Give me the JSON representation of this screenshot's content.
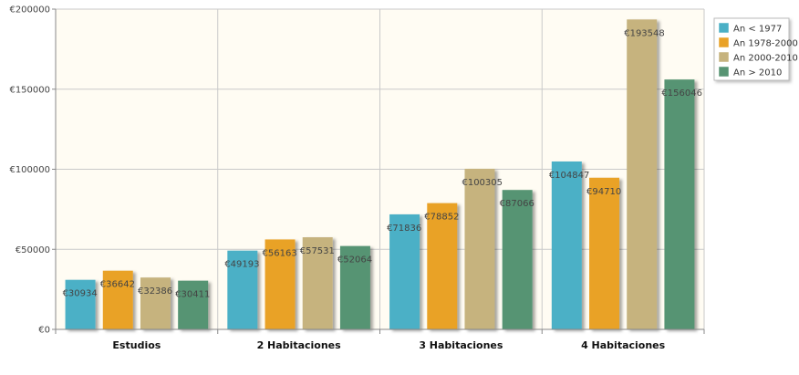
{
  "chart_data": {
    "type": "bar",
    "categories": [
      "Estudios",
      "2 Habitaciones",
      "3 Habitaciones",
      "4 Habitaciones"
    ],
    "series": [
      {
        "name": "An < 1977",
        "values": [
          30934,
          49193,
          71836,
          104847
        ],
        "labels": [
          "€30934",
          "€49193",
          "€71836",
          "€104847"
        ],
        "color": "#4bb0c6"
      },
      {
        "name": "An 1978-2000",
        "values": [
          36642,
          56163,
          78852,
          94710
        ],
        "labels": [
          "€36642",
          "€56163",
          "€78852",
          "€94710"
        ],
        "color": "#e9a228"
      },
      {
        "name": "An 2000-2010",
        "values": [
          32386,
          57531,
          100305,
          193548
        ],
        "labels": [
          "€32386",
          "€57531",
          "€100305",
          "€193548"
        ],
        "color": "#c6b37e"
      },
      {
        "name": "An > 2010",
        "values": [
          30411,
          52064,
          87066,
          156046
        ],
        "labels": [
          "€30411",
          "€52064",
          "€87066",
          "€156046"
        ],
        "color": "#579473"
      }
    ],
    "yticks": [
      0,
      50000,
      100000,
      150000,
      200000
    ],
    "ytick_labels": [
      "€0",
      "€50000",
      "€100000",
      "€150000",
      "€200000"
    ],
    "ylim": [
      0,
      200000
    ],
    "grid": true,
    "plot_background": "#fffcf3",
    "legend_position": "right"
  }
}
